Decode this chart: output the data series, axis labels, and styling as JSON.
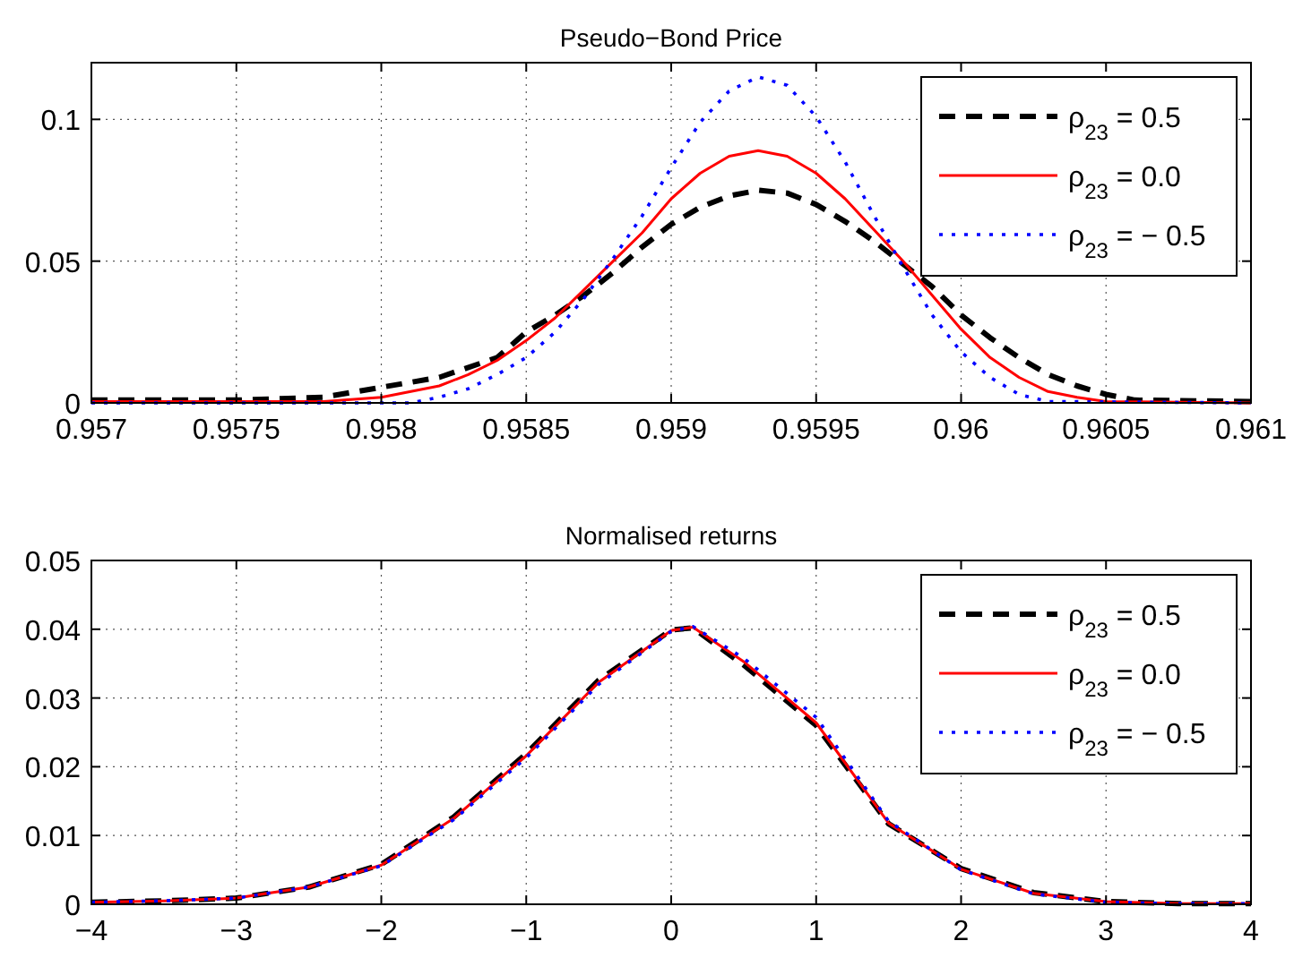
{
  "chart_data": [
    {
      "type": "line",
      "title": "Pseudo−Bond Price",
      "xlim": [
        0.957,
        0.961
      ],
      "xticks": [
        0.957,
        0.9575,
        0.958,
        0.9585,
        0.959,
        0.9595,
        0.96,
        0.9605,
        0.961
      ],
      "ylim": [
        0,
        0.12
      ],
      "yticks": [
        0,
        0.05,
        0.1
      ],
      "grid": true,
      "legend": "top right",
      "series": [
        {
          "name": "ρ$_{23}$ = 0.5",
          "color": "#000000",
          "line_style": "dashed",
          "x": [
            0.957,
            0.9575,
            0.9578,
            0.958,
            0.9582,
            0.9584,
            0.9585,
            0.9586,
            0.9587,
            0.9588,
            0.9589,
            0.959,
            0.9591,
            0.9592,
            0.9593,
            0.9594,
            0.9595,
            0.9596,
            0.9597,
            0.9598,
            0.9599,
            0.96,
            0.9601,
            0.9602,
            0.9603,
            0.9604,
            0.9605,
            0.9606,
            0.961
          ],
          "values": [
            0.001,
            0.001,
            0.002,
            0.0055,
            0.009,
            0.016,
            0.025,
            0.031,
            0.038,
            0.046,
            0.055,
            0.063,
            0.069,
            0.073,
            0.075,
            0.074,
            0.07,
            0.064,
            0.057,
            0.049,
            0.041,
            0.031,
            0.023,
            0.016,
            0.01,
            0.006,
            0.003,
            0.001,
            0.0005
          ]
        },
        {
          "name": "ρ$_{23}$ = 0.0",
          "color": "#ff0000",
          "line_style": "solid",
          "x": [
            0.957,
            0.9578,
            0.958,
            0.9582,
            0.9583,
            0.9584,
            0.9585,
            0.9586,
            0.9587,
            0.9588,
            0.9589,
            0.959,
            0.9591,
            0.9592,
            0.9593,
            0.9594,
            0.9595,
            0.9596,
            0.9597,
            0.9598,
            0.9599,
            0.96,
            0.9601,
            0.9602,
            0.9603,
            0.9604,
            0.9605,
            0.961
          ],
          "values": [
            0.0005,
            0.0005,
            0.002,
            0.006,
            0.01,
            0.015,
            0.022,
            0.03,
            0.04,
            0.05,
            0.06,
            0.072,
            0.081,
            0.087,
            0.089,
            0.087,
            0.081,
            0.072,
            0.061,
            0.05,
            0.038,
            0.026,
            0.016,
            0.009,
            0.004,
            0.002,
            0.0005,
            0
          ]
        },
        {
          "name": "ρ$_{23}$ = − 0.5",
          "color": "#0000ff",
          "line_style": "dotted",
          "x": [
            0.957,
            0.9581,
            0.9582,
            0.9583,
            0.9584,
            0.9585,
            0.9586,
            0.9587,
            0.9588,
            0.9589,
            0.959,
            0.9591,
            0.9592,
            0.9593,
            0.9594,
            0.9595,
            0.9596,
            0.9597,
            0.9598,
            0.9599,
            0.96,
            0.9601,
            0.9602,
            0.9603,
            0.961
          ],
          "values": [
            0,
            0,
            0.002,
            0.005,
            0.01,
            0.016,
            0.025,
            0.037,
            0.051,
            0.066,
            0.083,
            0.099,
            0.11,
            0.115,
            0.112,
            0.101,
            0.085,
            0.066,
            0.048,
            0.031,
            0.018,
            0.009,
            0.003,
            0.0005,
            0
          ]
        }
      ]
    },
    {
      "type": "line",
      "title": "Normalised returns",
      "xlim": [
        -4,
        4
      ],
      "xticks": [
        -4,
        -3,
        -2,
        -1,
        0,
        1,
        2,
        3,
        4
      ],
      "ylim": [
        0,
        0.05
      ],
      "yticks": [
        0,
        0.01,
        0.02,
        0.03,
        0.04,
        0.05
      ],
      "grid": true,
      "legend": "top right",
      "series": [
        {
          "name": "ρ$_{23}$ = 0.5",
          "color": "#000000",
          "line_style": "dashed",
          "x": [
            -4,
            -3.5,
            -3,
            -2.5,
            -2,
            -1.5,
            -1,
            -0.5,
            0,
            0.15,
            0.5,
            1,
            1.5,
            2,
            2.5,
            3,
            3.5,
            4
          ],
          "values": [
            0.0003,
            0.0005,
            0.0009,
            0.0025,
            0.0058,
            0.0127,
            0.0219,
            0.0326,
            0.0399,
            0.0402,
            0.0348,
            0.026,
            0.0117,
            0.0052,
            0.0017,
            0.0004,
            0.0001,
            0.0001
          ]
        },
        {
          "name": "ρ$_{23}$ = 0.0",
          "color": "#ff0000",
          "line_style": "solid",
          "x": [
            -4,
            -3.5,
            -3,
            -2.5,
            -2,
            -1.5,
            -1,
            -0.5,
            0,
            0.15,
            0.5,
            1,
            1.5,
            2,
            2.5,
            3,
            3.5,
            4
          ],
          "values": [
            0.0003,
            0.0005,
            0.0009,
            0.0025,
            0.0057,
            0.0125,
            0.0216,
            0.0323,
            0.0398,
            0.0403,
            0.0353,
            0.0264,
            0.0118,
            0.0051,
            0.0016,
            0.0004,
            0.0001,
            0.0001
          ]
        },
        {
          "name": "ρ$_{23}$ = − 0.5",
          "color": "#0000ff",
          "line_style": "dotted",
          "x": [
            -4,
            -3.5,
            -3,
            -2.5,
            -2,
            -1.5,
            -1,
            -0.5,
            0,
            0.15,
            0.5,
            1,
            1.5,
            2,
            2.5,
            3,
            3.5,
            4
          ],
          "values": [
            0.0003,
            0.0005,
            0.0009,
            0.0025,
            0.0056,
            0.0123,
            0.0213,
            0.032,
            0.0397,
            0.0404,
            0.0358,
            0.0272,
            0.0121,
            0.005,
            0.0015,
            0.0003,
            0.0001,
            0.0001
          ]
        }
      ]
    }
  ]
}
